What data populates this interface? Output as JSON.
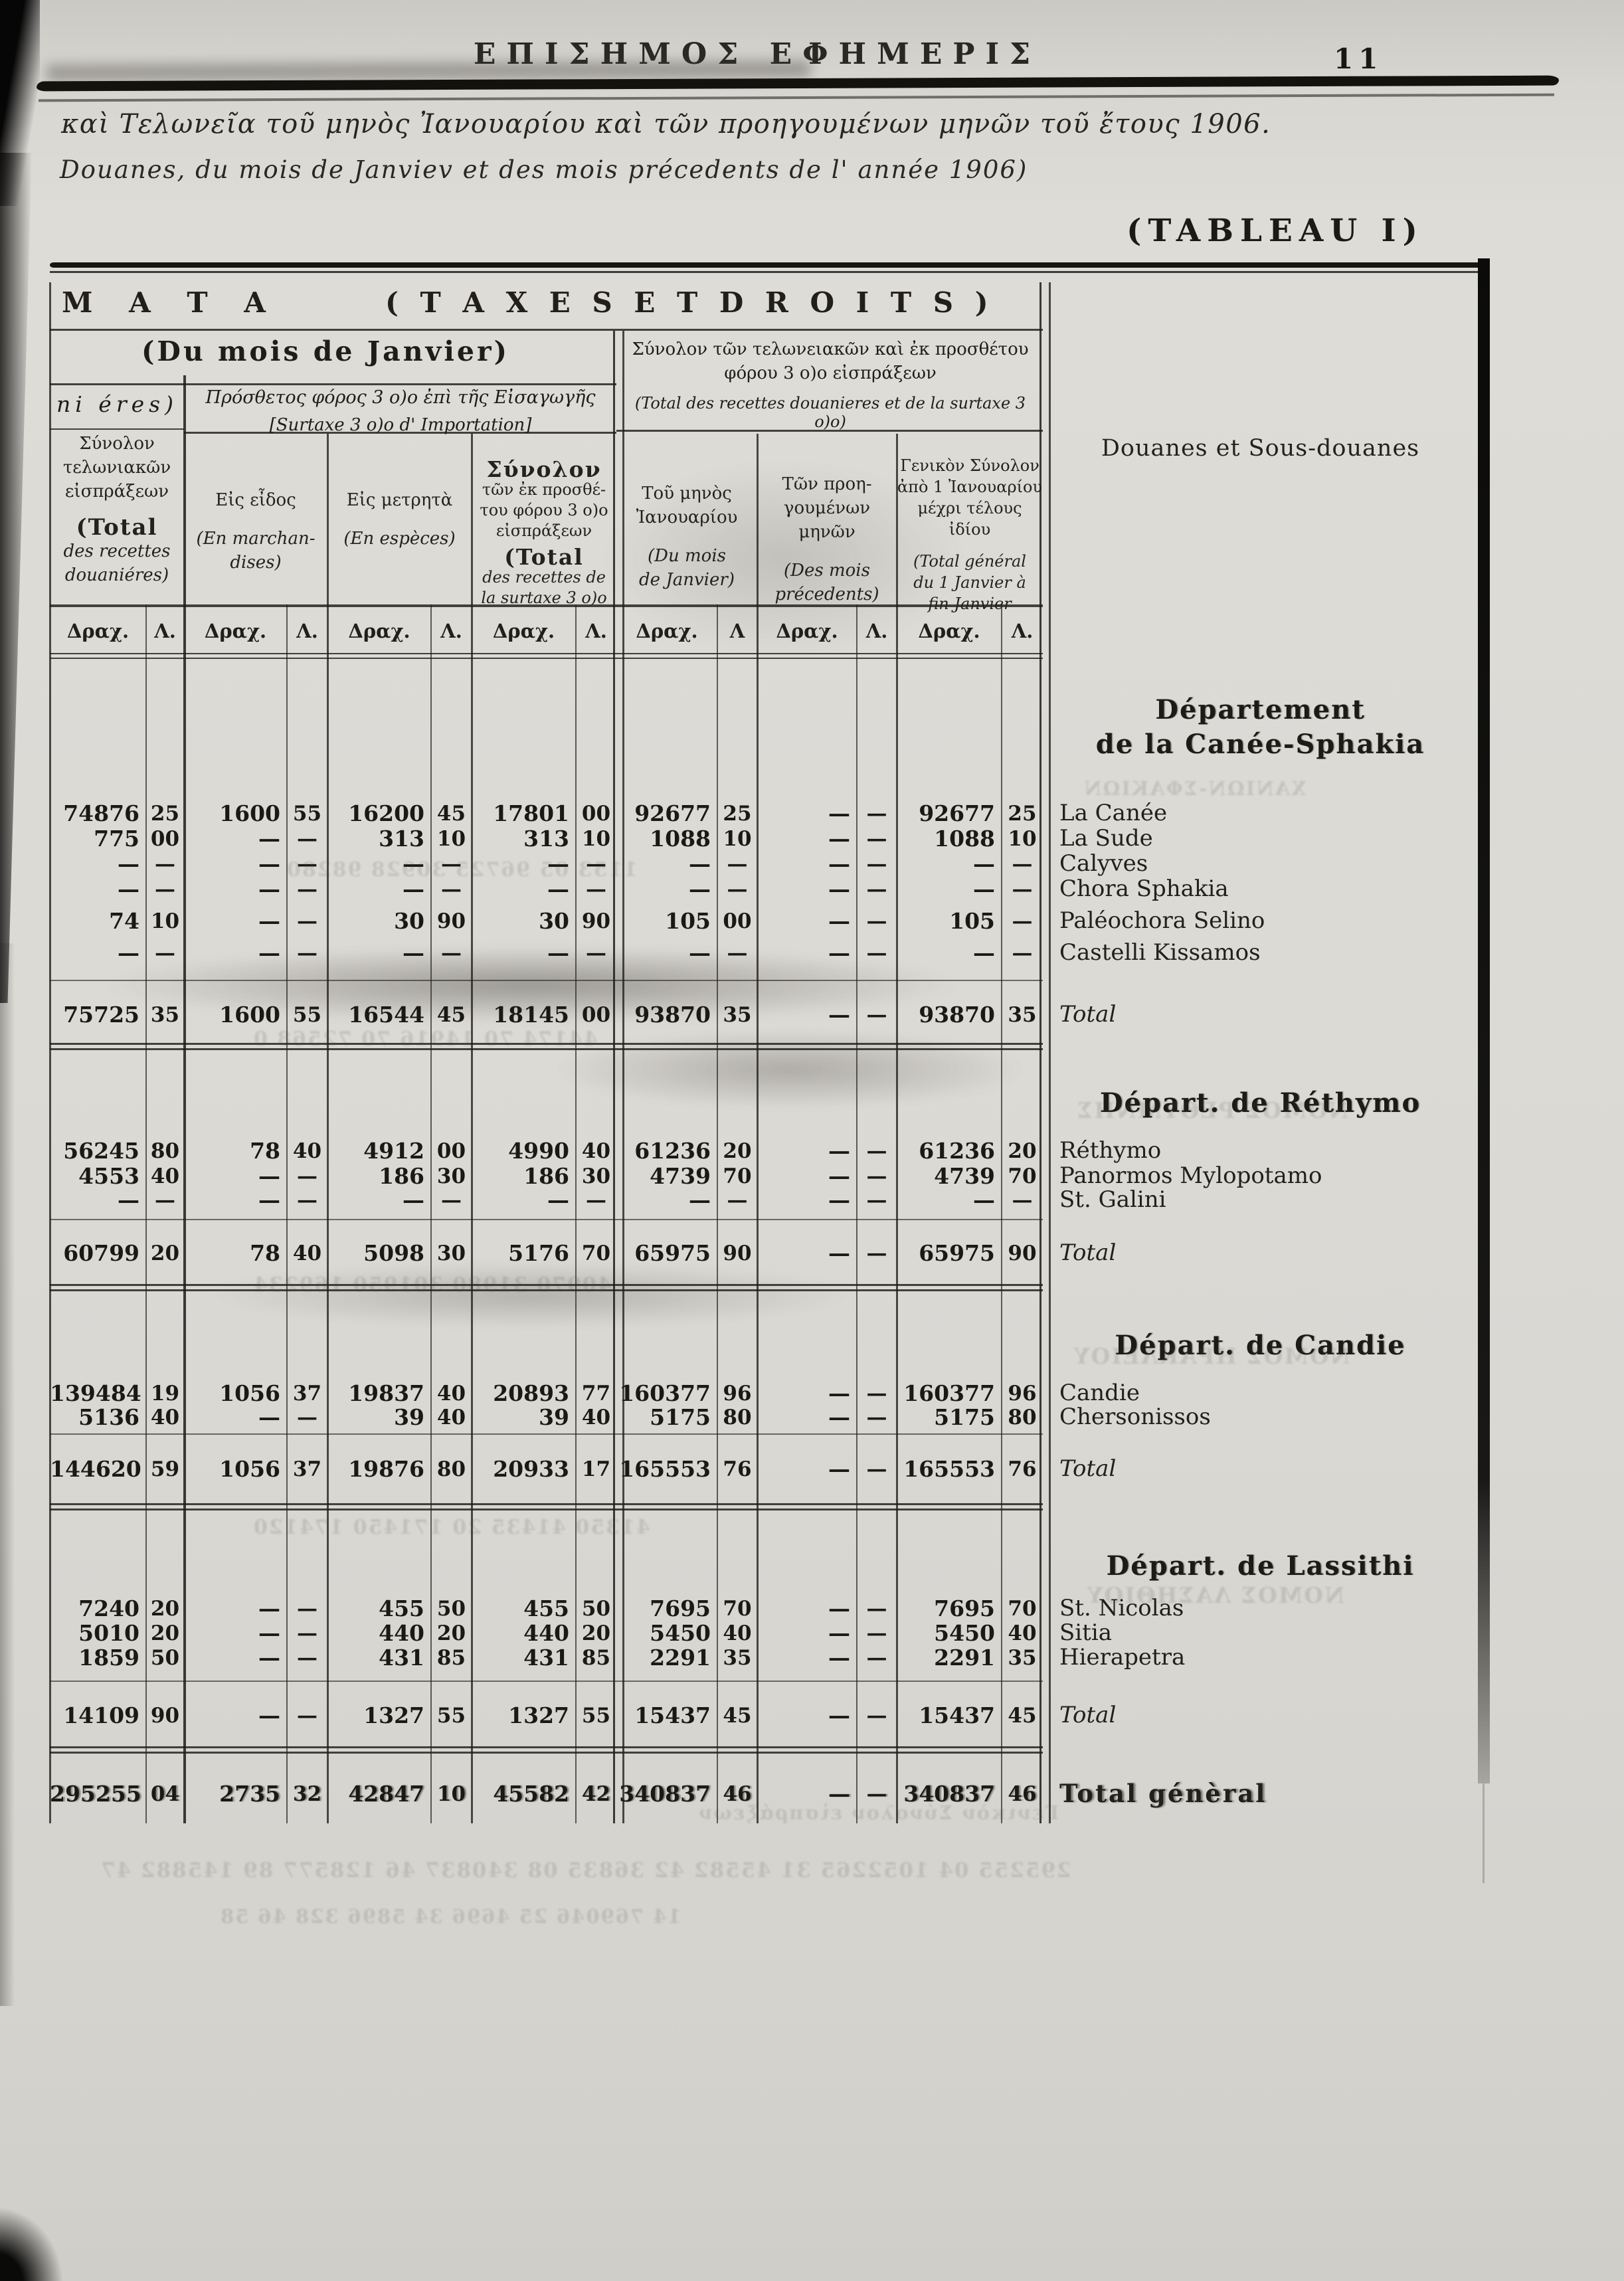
{
  "page": {
    "masthead": "ΕΠΙΣΗΜΟΣ ΕΦΗΜΕΡΙΣ",
    "page_number": "11",
    "subtitle_greek": "καὶ Τελωνεῖα τοῦ μηνὸς Ἰανουαρίου καὶ τῶν προηγουμένων μηνῶν τοῦ ἔτους 1906.",
    "subtitle_french": "Douanes, du mois de Janviev et des mois précedents de l' année 1906)",
    "tableau_label": "(TABLEAU I)"
  },
  "table": {
    "title_greek": "Μ Α Τ Α",
    "title_latin": "( T A X E S   E T   D R O I T S )",
    "left_group_label": "(Du mois de Janvier)",
    "left_fragment": "ni éres)",
    "surtaxe_group": {
      "greek": "Πρόσθετος φόρος 3 ο)ο ἐπὶ τῆς Εἰσαγωγῆς",
      "french": "[Surtaxe 3 ο)ο d' Importation]"
    },
    "right_group": {
      "greek1": "Σύνολον τῶν τελωνειακῶν καὶ ἐκ προσθέτου",
      "greek2": "φόρου 3 ο)ο εἰσπράξεων",
      "french": "(Total des recettes douanieres et de la surtaxe 3 ο)ο)"
    },
    "columns": [
      {
        "id": "recettes-douanieres",
        "lines": [
          {
            "t": "Σύνολον"
          },
          {
            "t": "τελωνιακῶν"
          },
          {
            "t": "εἰσπράξεων"
          },
          {
            "t": "(Total",
            "b": 1
          },
          {
            "t": "des recettes",
            "i": 1
          },
          {
            "t": "douaniéres)",
            "i": 1
          }
        ]
      },
      {
        "id": "en-marchandises",
        "lines": [
          {
            "t": "Εἰς εἶδος"
          },
          {
            "t": "(En marchan-",
            "i": 1
          },
          {
            "t": "dises)",
            "i": 1
          }
        ]
      },
      {
        "id": "en-especes",
        "lines": [
          {
            "t": "Εἰς μετρητὰ"
          },
          {
            "t": "(En espèces)",
            "i": 1
          }
        ]
      },
      {
        "id": "total-surtaxe",
        "lines": [
          {
            "t": "Σύνολον",
            "b": 1
          },
          {
            "t": "τῶν ἐκ προσθέ-"
          },
          {
            "t": "του φόρου 3 ο)ο"
          },
          {
            "t": "εἰσπράξεων"
          },
          {
            "t": "(Total",
            "b": 1
          },
          {
            "t": "des recettes de",
            "i": 1
          },
          {
            "t": "la surtaxe 3 ο)ο",
            "i": 1
          }
        ]
      },
      {
        "id": "mois-janvier",
        "lines": [
          {
            "t": "Τοῦ μηνὸς"
          },
          {
            "t": "Ἰανουαρίου"
          },
          {
            "t": "(Du mois",
            "i": 1
          },
          {
            "t": "de Janvier)",
            "i": 1
          }
        ]
      },
      {
        "id": "mois-precedents",
        "lines": [
          {
            "t": "Τῶν προη-"
          },
          {
            "t": "γουμένων"
          },
          {
            "t": "μηνῶν"
          },
          {
            "t": "(Des mois",
            "i": 1
          },
          {
            "t": "précedents)",
            "i": 1
          }
        ]
      },
      {
        "id": "total-general",
        "lines": [
          {
            "t": "Γενικὸν Σύνολον"
          },
          {
            "t": "ἀπὸ 1 Ἰανουαρίου"
          },
          {
            "t": "μέχρι τέλους"
          },
          {
            "t": "ἰδίου"
          },
          {
            "t": "(Total général",
            "i": 1
          },
          {
            "t": "du 1 Janvier à",
            "i": 1
          },
          {
            "t": "fin Janvier",
            "i": 1
          }
        ]
      }
    ],
    "unit_headers": [
      [
        "Δραχ.",
        "Λ."
      ],
      [
        "Δραχ.",
        "Λ."
      ],
      [
        "Δραχ.",
        "Λ."
      ],
      [
        "Δραχ.",
        "Λ."
      ],
      [
        "Δραχ.",
        "Λ"
      ],
      [
        "Δραχ.",
        "Λ."
      ],
      [
        "Δραχ.",
        "Λ."
      ]
    ],
    "names_header": "Douanes et Sous-douanes",
    "sections": [
      {
        "heading": [
          "Département",
          "de la Canée-Sphakia"
        ],
        "rows": [
          {
            "name": "La Canée",
            "v": [
              "74876",
              "25",
              "1600",
              "55",
              "16200",
              "45",
              "17801",
              "00",
              "92677",
              "25",
              "—",
              "—",
              "92677",
              "25"
            ]
          },
          {
            "name": "La Sude",
            "v": [
              "775",
              "00",
              "—",
              "—",
              "313",
              "10",
              "313",
              "10",
              "1088",
              "10",
              "—",
              "—",
              "1088",
              "10"
            ]
          },
          {
            "name": "Calyves",
            "v": [
              "—",
              "—",
              "—",
              "—",
              "—",
              "—",
              "—",
              "—",
              "—",
              "—",
              "—",
              "—",
              "—",
              "—"
            ]
          },
          {
            "name": "Chora Sphakia",
            "v": [
              "—",
              "—",
              "—",
              "—",
              "—",
              "—",
              "—",
              "—",
              "—",
              "—",
              "—",
              "—",
              "—",
              "—"
            ]
          },
          {
            "name": "Paléochora Selino",
            "v": [
              "74",
              "10",
              "—",
              "—",
              "30",
              "90",
              "30",
              "90",
              "105",
              "00",
              "—",
              "—",
              "105",
              "—"
            ]
          },
          {
            "name": "Castelli Kissamos",
            "v": [
              "—",
              "—",
              "—",
              "—",
              "—",
              "—",
              "—",
              "—",
              "—",
              "—",
              "—",
              "—",
              "—",
              "—"
            ]
          }
        ],
        "total": {
          "name": "Total",
          "v": [
            "75725",
            "35",
            "1600",
            "55",
            "16544",
            "45",
            "18145",
            "00",
            "93870",
            "35",
            "—",
            "—",
            "93870",
            "35"
          ]
        }
      },
      {
        "heading": [
          "Départ. de Réthymo"
        ],
        "rows": [
          {
            "name": "Réthymo",
            "v": [
              "56245",
              "80",
              "78",
              "40",
              "4912",
              "00",
              "4990",
              "40",
              "61236",
              "20",
              "—",
              "—",
              "61236",
              "20"
            ]
          },
          {
            "name": "Panormos Mylopotamo",
            "v": [
              "4553",
              "40",
              "—",
              "—",
              "186",
              "30",
              "186",
              "30",
              "4739",
              "70",
              "—",
              "—",
              "4739",
              "70"
            ]
          },
          {
            "name": "St. Galini",
            "v": [
              "—",
              "—",
              "—",
              "—",
              "—",
              "—",
              "—",
              "—",
              "—",
              "—",
              "—",
              "—",
              "—",
              "—"
            ]
          }
        ],
        "total": {
          "name": "Total",
          "v": [
            "60799",
            "20",
            "78",
            "40",
            "5098",
            "30",
            "5176",
            "70",
            "65975",
            "90",
            "—",
            "—",
            "65975",
            "90"
          ]
        }
      },
      {
        "heading": [
          "Départ. de Candie"
        ],
        "rows": [
          {
            "name": "Candie",
            "v": [
              "139484",
              "19",
              "1056",
              "37",
              "19837",
              "40",
              "20893",
              "77",
              "160377",
              "96",
              "—",
              "—",
              "160377",
              "96"
            ]
          },
          {
            "name": "Chersonissos",
            "v": [
              "5136",
              "40",
              "—",
              "—",
              "39",
              "40",
              "39",
              "40",
              "5175",
              "80",
              "—",
              "—",
              "5175",
              "80"
            ]
          }
        ],
        "total": {
          "name": "Total",
          "v": [
            "144620",
            "59",
            "1056",
            "37",
            "19876",
            "80",
            "20933",
            "17",
            "165553",
            "76",
            "—",
            "—",
            "165553",
            "76"
          ]
        }
      },
      {
        "heading": [
          "Départ. de Lassithi"
        ],
        "rows": [
          {
            "name": "St. Nicolas",
            "v": [
              "7240",
              "20",
              "—",
              "—",
              "455",
              "50",
              "455",
              "50",
              "7695",
              "70",
              "—",
              "—",
              "7695",
              "70"
            ]
          },
          {
            "name": "Sitia",
            "v": [
              "5010",
              "20",
              "—",
              "—",
              "440",
              "20",
              "440",
              "20",
              "5450",
              "40",
              "—",
              "—",
              "5450",
              "40"
            ]
          },
          {
            "name": "Hierapetra",
            "v": [
              "1859",
              "50",
              "—",
              "—",
              "431",
              "85",
              "431",
              "85",
              "2291",
              "35",
              "—",
              "—",
              "2291",
              "35"
            ]
          }
        ],
        "total": {
          "name": "Total",
          "v": [
            "14109",
            "90",
            "—",
            "—",
            "1327",
            "55",
            "1327",
            "55",
            "15437",
            "45",
            "—",
            "—",
            "15437",
            "45"
          ]
        }
      }
    ],
    "grand_total": {
      "name": "Total génèral",
      "v": [
        "295255",
        "04",
        "2735",
        "32",
        "42847",
        "10",
        "45582",
        "42",
        "340837",
        "46",
        "—",
        "—",
        "340837",
        "46"
      ]
    }
  },
  "ghosts": [
    {
      "id": "g-canea",
      "text": "ΧΑΝΙΩΝ-ΣΦΑΚΙΩΝ"
    },
    {
      "id": "g-num-1",
      "text": "1153 05   96725   30928   98280"
    },
    {
      "id": "g-num-2",
      "text": "44174 70   14916 70   72568 0"
    },
    {
      "id": "g-rethymno",
      "text": "ΝΟΜΟΣ ΡΕΘΥΜΝΗΣ"
    },
    {
      "id": "g-num-3",
      "text": "40970   31980   301950   169234"
    },
    {
      "id": "g-herakleion",
      "text": "ΝΟΜΟΣ ΗΡΑΚΛΕΙΟΥ"
    },
    {
      "id": "g-num-4",
      "text": "41350   41435 20   171450   174120"
    },
    {
      "id": "g-lassithi",
      "text": "ΝΟΜΟΣ ΛΑΣΗΘΙΟΥ"
    },
    {
      "id": "g-bottom-0",
      "text": "Γενικὸν Σύνολον εἰσπράξεων"
    },
    {
      "id": "g-bottom-1",
      "text": "295255 04   1052265 31   45582 42   36835 08   340837 46   128577 89   145882 47"
    },
    {
      "id": "g-bottom-2",
      "text": "14 769046   25 4696   34 5896   328 46 58"
    }
  ]
}
